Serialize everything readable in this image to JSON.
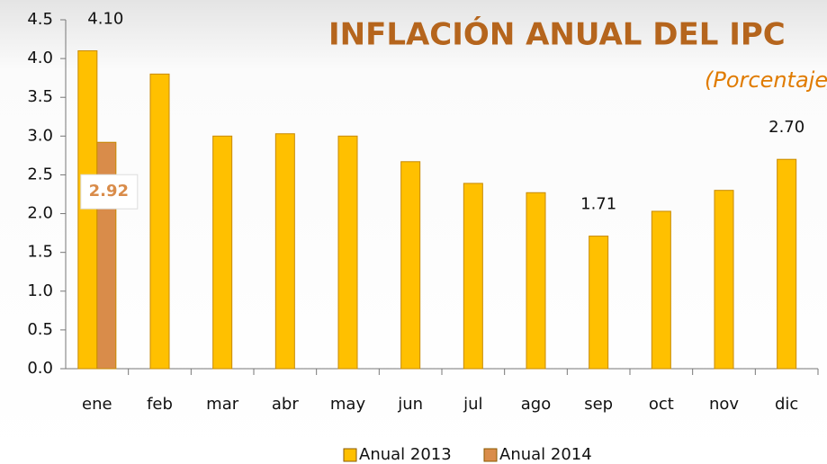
{
  "chart_data": {
    "type": "bar",
    "title": "INFLACIÓN  ANUAL  DEL IPC",
    "subtitle": "(Porcentaje)",
    "categories": [
      "ene",
      "feb",
      "mar",
      "abr",
      "may",
      "jun",
      "jul",
      "ago",
      "sep",
      "oct",
      "nov",
      "dic"
    ],
    "series": [
      {
        "name": "Anual 2013",
        "color": "#ffc000",
        "values": [
          4.1,
          3.8,
          3.0,
          3.03,
          3.0,
          2.67,
          2.39,
          2.27,
          1.71,
          2.03,
          2.3,
          2.7
        ],
        "value_labels": [
          "4.10",
          null,
          null,
          null,
          null,
          null,
          null,
          null,
          "1.71",
          null,
          null,
          "2.70"
        ]
      },
      {
        "name": "Anual 2014",
        "color": "#d98c4a",
        "values": [
          2.92,
          null,
          null,
          null,
          null,
          null,
          null,
          null,
          null,
          null,
          null,
          null
        ],
        "value_labels": [
          "2.92",
          null,
          null,
          null,
          null,
          null,
          null,
          null,
          null,
          null,
          null,
          null
        ]
      }
    ],
    "ylim": [
      0,
      4.5
    ],
    "yticks": [
      {
        "value": 0,
        "label": "0.0"
      },
      0.5,
      {
        "value": 1,
        "label": "1.0"
      },
      1.5,
      {
        "value": 2,
        "label": "2.0"
      },
      2.5,
      {
        "value": 3,
        "label": "3.0"
      },
      3.5,
      {
        "value": 4,
        "label": "4.0"
      },
      4.5
    ]
  }
}
